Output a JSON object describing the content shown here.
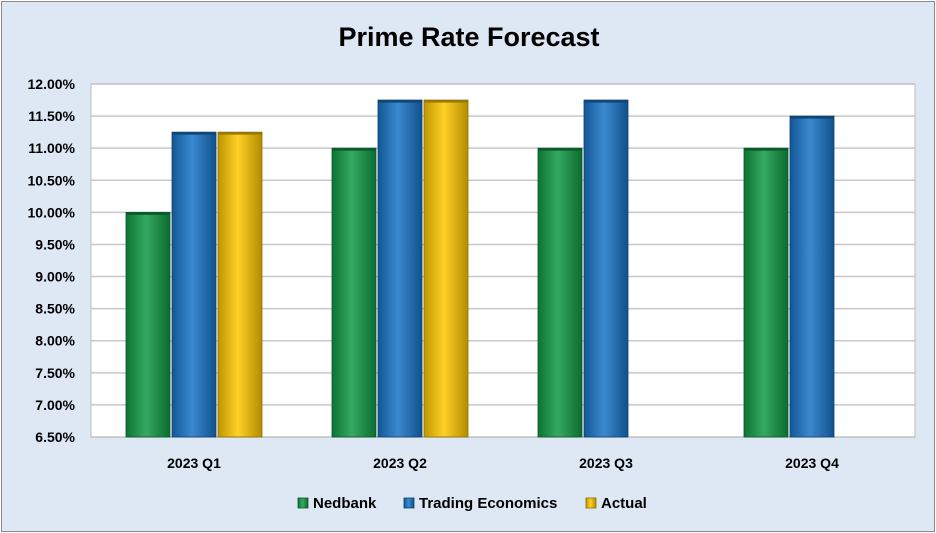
{
  "chart_data": {
    "type": "bar",
    "title": "Prime Rate Forecast",
    "xlabel": "",
    "ylabel": "",
    "categories": [
      "2023 Q1",
      "2023 Q2",
      "2023 Q3",
      "2023 Q4"
    ],
    "series": [
      {
        "name": "Nedbank",
        "values": [
          10.0,
          11.0,
          11.0,
          11.0
        ],
        "color": "#119a45"
      },
      {
        "name": "Trading Economics",
        "values": [
          11.25,
          11.75,
          11.75,
          11.5
        ],
        "color": "#1874c8"
      },
      {
        "name": "Actual",
        "values": [
          11.25,
          11.75,
          null,
          null
        ],
        "color": "#ffc800"
      }
    ],
    "ylim": [
      6.5,
      12.0
    ],
    "yticks": [
      6.5,
      7.0,
      7.5,
      8.0,
      8.5,
      9.0,
      9.5,
      10.0,
      10.5,
      11.0,
      11.5,
      12.0
    ],
    "ytick_labels": [
      "6.50%",
      "7.00%",
      "7.50%",
      "8.00%",
      "8.50%",
      "9.00%",
      "9.50%",
      "10.00%",
      "10.50%",
      "11.00%",
      "11.50%",
      "12.00%"
    ],
    "grid": true,
    "legend_position": "bottom"
  }
}
